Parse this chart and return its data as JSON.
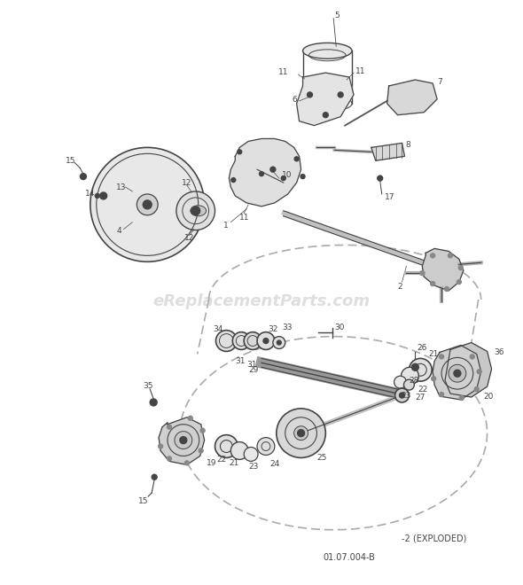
{
  "bg": "#ffffff",
  "wm_text": "eReplacementParts.com",
  "wm_color": "#c8c8c8",
  "wm_fs": 13,
  "dc": "#444444",
  "lc": "#666666",
  "gc": "#aaaaaa",
  "lfs": 6.5,
  "footnote": "01.07.004-B",
  "exploded": "-2 (EXPLODED)"
}
